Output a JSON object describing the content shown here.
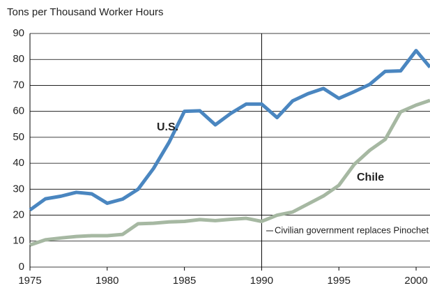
{
  "chart_data": {
    "type": "line",
    "title": "Tons per Thousand Worker Hours",
    "x": [
      1975,
      1976,
      1977,
      1978,
      1979,
      1980,
      1981,
      1982,
      1983,
      1984,
      1985,
      1986,
      1987,
      1988,
      1989,
      1990,
      1991,
      1992,
      1993,
      1994,
      1995,
      1996,
      1997,
      1998,
      1999,
      2000,
      2000.9
    ],
    "series": [
      {
        "name": "U.S.",
        "color": "#4a86c0",
        "values": [
          22,
          26.3,
          27.3,
          28.8,
          28.2,
          24.6,
          26.2,
          30,
          38,
          48,
          60,
          60.2,
          54.8,
          59.2,
          62.8,
          62.8,
          57.6,
          64,
          66.8,
          68.8,
          65,
          67.6,
          70.4,
          75.4,
          75.6,
          83.4,
          77
        ]
      },
      {
        "name": "Chile",
        "color": "#a6b8a2",
        "values": [
          8.5,
          10.5,
          11.2,
          11.8,
          12.1,
          12.1,
          12.6,
          16.7,
          16.9,
          17.4,
          17.6,
          18.3,
          17.9,
          18.4,
          18.8,
          17.6,
          20,
          21.2,
          24.3,
          27.4,
          31.5,
          39.6,
          45,
          49.2,
          59.8,
          62.4,
          64.2
        ]
      }
    ],
    "xlim": [
      1975,
      2000.9
    ],
    "ylim": [
      0,
      90
    ],
    "xticks": [
      1975,
      1980,
      1985,
      1990,
      1995,
      2000
    ],
    "yticks": [
      0,
      10,
      20,
      30,
      40,
      50,
      60,
      70,
      80,
      90
    ],
    "grid": true,
    "annotation": {
      "text": "Civilian government replaces Pinochet",
      "x": 1990
    }
  }
}
